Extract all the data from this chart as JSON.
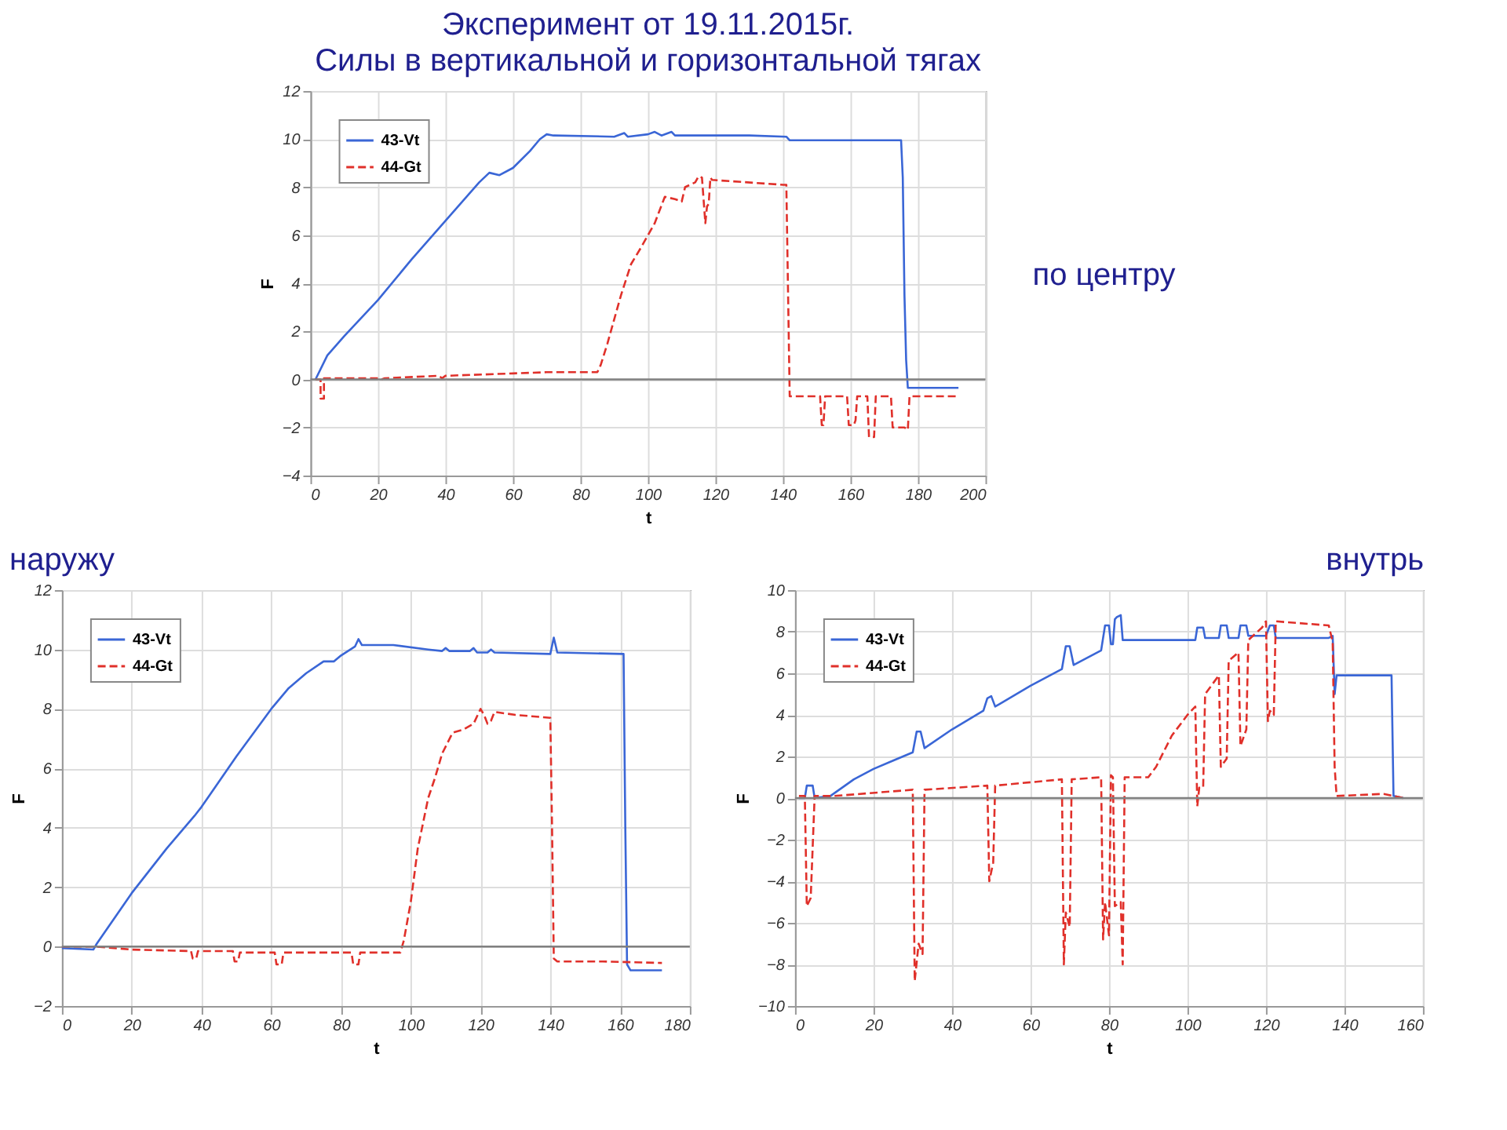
{
  "chart_data": [
    {
      "type": "line",
      "title": "Эксперимент от 19.11.2015г.",
      "subtitle": "Силы в вертикальной и горизонтальной тягах",
      "annotations": [
        "по центру"
      ],
      "xlabel": "t",
      "ylabel": "F",
      "xlim": [
        0,
        200
      ],
      "xticks": [
        0,
        20,
        40,
        60,
        80,
        100,
        120,
        140,
        160,
        180,
        200
      ],
      "ylim": [
        -4,
        12
      ],
      "yticks": [
        -4,
        -2,
        0,
        2,
        4,
        6,
        8,
        10,
        12
      ],
      "grid": true,
      "legend": "top left",
      "marker": "none",
      "ref_lines": [
        {
          "axis": "y",
          "value": 0,
          "label": null,
          "color": "#808080"
        }
      ],
      "series": [
        {
          "name": "43-Vt",
          "color": "#3a66d6",
          "line_style": "solid",
          "x": [
            1.5,
            5,
            10,
            20,
            30,
            40,
            50,
            53,
            56,
            60,
            65,
            68,
            70,
            72,
            90,
            93,
            94,
            100,
            102,
            104,
            107,
            108,
            130,
            141,
            142,
            175,
            175.5,
            176,
            176.5,
            177,
            185,
            192
          ],
          "values": [
            0,
            1,
            1.8,
            3.3,
            5,
            6.6,
            8.2,
            8.6,
            8.5,
            8.8,
            9.5,
            10,
            10.2,
            10.15,
            10.1,
            10.25,
            10.1,
            10.2,
            10.3,
            10.15,
            10.3,
            10.15,
            10.15,
            10.1,
            9.95,
            9.95,
            8.4,
            3.5,
            0.8,
            -0.35,
            -0.35,
            -0.35
          ]
        },
        {
          "name": "44-Gt",
          "color": "#e0302a",
          "line_style": "dashed",
          "x": [
            1.5,
            3,
            3,
            4,
            4,
            20,
            21,
            22,
            38,
            39,
            40,
            60,
            70,
            85,
            86,
            88,
            92,
            95,
            98,
            100,
            102,
            105,
            108,
            110,
            111,
            114,
            115,
            116,
            117,
            117.5,
            118,
            118.5,
            119,
            140,
            141,
            142,
            150,
            151,
            151.5,
            152,
            152.5,
            159,
            159.5,
            161,
            161.5,
            162,
            165,
            165.5,
            167,
            167.5,
            172,
            172.5,
            175,
            176,
            177,
            177.5,
            185,
            192
          ],
          "values": [
            0,
            0,
            -0.8,
            -0.8,
            0.05,
            0.05,
            0,
            0.05,
            0.15,
            0.05,
            0.15,
            0.25,
            0.3,
            0.3,
            0.6,
            1.5,
            3.5,
            4.8,
            5.5,
            6,
            6.5,
            7.6,
            7.5,
            7.4,
            8,
            8.2,
            8.45,
            8.4,
            6.5,
            7.2,
            7.3,
            8.4,
            8.3,
            8.1,
            8.1,
            -0.7,
            -0.7,
            -0.7,
            -1.9,
            -1.9,
            -0.7,
            -0.7,
            -1.9,
            -1.9,
            -1.7,
            -0.7,
            -0.7,
            -2.4,
            -2.4,
            -0.7,
            -0.7,
            -2,
            -2,
            -2,
            -2.1,
            -0.7,
            -0.7,
            -0.7
          ]
        }
      ]
    },
    {
      "type": "line",
      "title": "наружу",
      "xlabel": "t",
      "ylabel": "F",
      "xlim": [
        0,
        180
      ],
      "xticks": [
        0,
        20,
        40,
        60,
        80,
        100,
        120,
        140,
        160,
        180
      ],
      "ylim": [
        -2,
        12
      ],
      "yticks": [
        -2,
        0,
        2,
        4,
        6,
        8,
        10,
        12
      ],
      "grid": true,
      "legend": "top left",
      "marker": "none",
      "ref_lines": [
        {
          "axis": "y",
          "value": 0,
          "label": null,
          "color": "#808080"
        }
      ],
      "series": [
        {
          "name": "43-Vt",
          "color": "#3a66d6",
          "line_style": "solid",
          "x": [
            0,
            9,
            10,
            20,
            30,
            38,
            40,
            50,
            60,
            65,
            70,
            75,
            78,
            80,
            84,
            85,
            86,
            95,
            105,
            109,
            110,
            111,
            117,
            118,
            119,
            122,
            123,
            124,
            140,
            141,
            142,
            161,
            161.5,
            162,
            163,
            172
          ],
          "values": [
            -0.05,
            -0.1,
            0.1,
            1.8,
            3.3,
            4.4,
            4.7,
            6.4,
            8,
            8.7,
            9.2,
            9.6,
            9.6,
            9.8,
            10.1,
            10.35,
            10.15,
            10.15,
            10,
            9.95,
            10.05,
            9.95,
            9.95,
            10.05,
            9.9,
            9.9,
            10,
            9.9,
            9.85,
            10.4,
            9.9,
            9.85,
            4,
            -0.6,
            -0.8,
            -0.8
          ]
        },
        {
          "name": "44-Gt",
          "color": "#e0302a",
          "line_style": "dashed",
          "x": [
            0,
            10,
            20,
            37,
            37.5,
            38.5,
            39,
            49,
            49.5,
            50.5,
            51,
            61,
            61.5,
            63,
            63.5,
            83,
            83.5,
            85,
            85.5,
            97,
            98,
            100,
            102,
            105,
            107,
            109,
            112,
            115,
            118,
            120,
            121,
            122,
            123,
            124,
            130,
            140,
            140.5,
            141,
            142,
            155,
            172
          ],
          "values": [
            0,
            0,
            -0.1,
            -0.15,
            -0.4,
            -0.4,
            -0.15,
            -0.15,
            -0.5,
            -0.5,
            -0.2,
            -0.2,
            -0.6,
            -0.6,
            -0.2,
            -0.2,
            -0.6,
            -0.6,
            -0.2,
            -0.2,
            0.2,
            1.5,
            3.3,
            5,
            5.7,
            6.5,
            7.2,
            7.3,
            7.5,
            8,
            7.8,
            7.5,
            7.6,
            7.9,
            7.8,
            7.7,
            4,
            -0.4,
            -0.5,
            -0.5,
            -0.55
          ]
        }
      ]
    },
    {
      "type": "line",
      "title": "внутрь",
      "xlabel": "t",
      "ylabel": "F",
      "xlim": [
        0,
        160
      ],
      "xticks": [
        0,
        20,
        40,
        60,
        80,
        100,
        120,
        140,
        160
      ],
      "ylim": [
        -10,
        10
      ],
      "yticks": [
        -10,
        -8,
        -6,
        -4,
        -2,
        0,
        2,
        4,
        6,
        8,
        10
      ],
      "grid": true,
      "legend": "top left",
      "marker": "none",
      "ref_lines": [
        {
          "axis": "y",
          "value": 0,
          "label": null,
          "color": "#808080"
        }
      ],
      "series": [
        {
          "name": "43-Vt",
          "color": "#3a66d6",
          "line_style": "solid",
          "x": [
            1,
            2.5,
            3,
            4.5,
            5,
            9,
            15,
            20,
            25,
            30,
            31,
            32,
            33,
            40,
            48,
            49,
            50,
            51,
            60,
            68,
            69,
            70,
            71,
            78,
            79,
            80,
            80.5,
            81,
            81.5,
            82,
            83,
            83.5,
            100,
            102,
            102.5,
            104,
            104.5,
            108,
            108.5,
            110,
            110.5,
            113,
            113.5,
            115,
            115.5,
            120,
            121,
            122,
            122.5,
            136,
            137,
            137.5,
            138,
            152,
            152.5,
            155
          ],
          "values": [
            0,
            0,
            0.6,
            0.6,
            0,
            0.1,
            0.9,
            1.4,
            1.8,
            2.2,
            3.2,
            3.2,
            2.4,
            3.3,
            4.2,
            4.8,
            4.9,
            4.4,
            5.4,
            6.2,
            7.3,
            7.3,
            6.4,
            7.1,
            8.3,
            8.3,
            7.4,
            7.4,
            8.6,
            8.7,
            8.8,
            7.6,
            7.6,
            7.6,
            8.2,
            8.2,
            7.7,
            7.7,
            8.3,
            8.3,
            7.7,
            7.7,
            8.3,
            8.3,
            7.8,
            7.8,
            8.3,
            8.3,
            7.7,
            7.7,
            7.8,
            5,
            5.9,
            5.9,
            0.1,
            0
          ]
        },
        {
          "name": "44-Gt",
          "color": "#e0302a",
          "line_style": "dashed",
          "x": [
            1,
            2.5,
            3,
            4,
            5,
            10,
            30,
            30.5,
            31.5,
            32.5,
            33,
            49,
            49.5,
            50.5,
            51,
            68,
            68.5,
            69,
            70,
            70.5,
            78,
            78.5,
            79,
            80,
            80.5,
            81,
            81.5,
            83,
            83.5,
            84,
            90,
            92,
            96,
            100,
            102,
            102.5,
            103,
            104,
            104.5,
            108,
            108.5,
            110,
            110.5,
            113,
            113.5,
            115,
            115.5,
            119,
            120,
            120.5,
            121,
            122,
            122.5,
            136,
            137,
            137.5,
            138,
            150,
            155
          ],
          "values": [
            0.1,
            0.1,
            -5.2,
            -4.8,
            0.1,
            0.1,
            0.4,
            -8.8,
            -7,
            -7.5,
            0.4,
            0.6,
            -4,
            -3.1,
            0.6,
            0.9,
            -8,
            -5.5,
            -6.2,
            0.9,
            1,
            -6.8,
            -5,
            -6.6,
            1.1,
            1,
            -5.2,
            -5,
            -8,
            1,
            1,
            1.5,
            3,
            4,
            4.4,
            -0.4,
            0.5,
            0.5,
            5,
            5.9,
            1.5,
            1.9,
            6.6,
            7,
            2.5,
            3.3,
            7.6,
            8.2,
            8.5,
            3.7,
            4.2,
            4,
            8.5,
            8.3,
            7.5,
            1.5,
            0.1,
            0.2,
            0
          ]
        }
      ]
    }
  ]
}
